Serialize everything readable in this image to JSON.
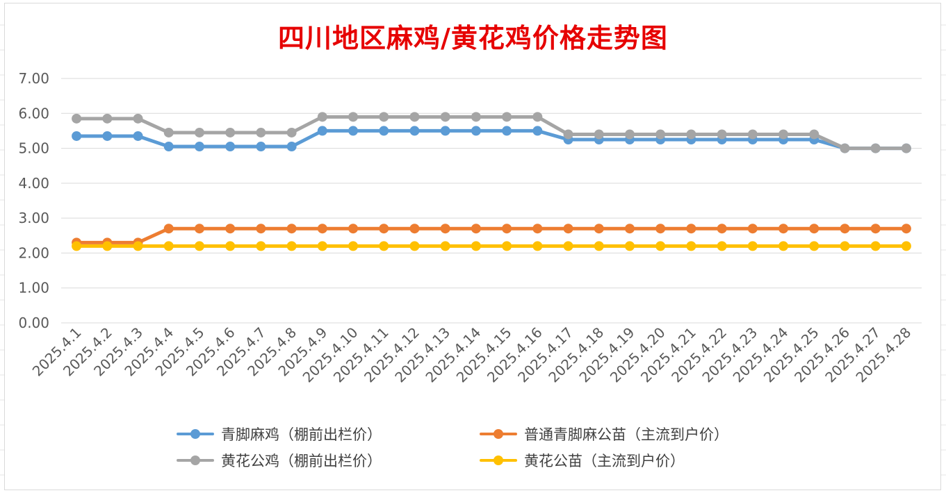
{
  "chart_data": {
    "type": "line",
    "title": "四川地区麻鸡/黄花鸡价格走势图",
    "title_color": "#e60000",
    "categories": [
      "2025.4.1",
      "2025.4.2",
      "2025.4.3",
      "2025.4.4",
      "2025.4.5",
      "2025.4.6",
      "2025.4.7",
      "2025.4.8",
      "2025.4.9",
      "2025.4.10",
      "2025.4.11",
      "2025.4.12",
      "2025.4.13",
      "2025.4.14",
      "2025.4.15",
      "2025.4.16",
      "2025.4.17",
      "2025.4.18",
      "2025.4.19",
      "2025.4.20",
      "2025.4.21",
      "2025.4.22",
      "2025.4.23",
      "2025.4.24",
      "2025.4.25",
      "2025.4.26",
      "2025.4.27",
      "2025.4.28"
    ],
    "ylim": [
      0,
      7
    ],
    "yticks": [
      "0.00",
      "1.00",
      "2.00",
      "3.00",
      "4.00",
      "5.00",
      "6.00",
      "7.00"
    ],
    "grid": true,
    "legend_position": "bottom",
    "series": [
      {
        "name": "青脚麻鸡（棚前出栏价）",
        "color": "#5b9bd5",
        "values": [
          5.35,
          5.35,
          5.35,
          5.05,
          5.05,
          5.05,
          5.05,
          5.05,
          5.5,
          5.5,
          5.5,
          5.5,
          5.5,
          5.5,
          5.5,
          5.5,
          5.25,
          5.25,
          5.25,
          5.25,
          5.25,
          5.25,
          5.25,
          5.25,
          5.25,
          5.0,
          5.0,
          5.0
        ]
      },
      {
        "name": "普通青脚麻公苗（主流到户价）",
        "color": "#ed7d31",
        "values": [
          2.3,
          2.3,
          2.3,
          2.7,
          2.7,
          2.7,
          2.7,
          2.7,
          2.7,
          2.7,
          2.7,
          2.7,
          2.7,
          2.7,
          2.7,
          2.7,
          2.7,
          2.7,
          2.7,
          2.7,
          2.7,
          2.7,
          2.7,
          2.7,
          2.7,
          2.7,
          2.7,
          2.7
        ]
      },
      {
        "name": "黄花公鸡（棚前出栏价）",
        "color": "#a5a5a5",
        "values": [
          5.85,
          5.85,
          5.85,
          5.45,
          5.45,
          5.45,
          5.45,
          5.45,
          5.9,
          5.9,
          5.9,
          5.9,
          5.9,
          5.9,
          5.9,
          5.9,
          5.4,
          5.4,
          5.4,
          5.4,
          5.4,
          5.4,
          5.4,
          5.4,
          5.4,
          5.0,
          5.0,
          5.0
        ]
      },
      {
        "name": "黄花公苗（主流到户价）",
        "color": "#ffc000",
        "values": [
          2.2,
          2.2,
          2.2,
          2.2,
          2.2,
          2.2,
          2.2,
          2.2,
          2.2,
          2.2,
          2.2,
          2.2,
          2.2,
          2.2,
          2.2,
          2.2,
          2.2,
          2.2,
          2.2,
          2.2,
          2.2,
          2.2,
          2.2,
          2.2,
          2.2,
          2.2,
          2.2,
          2.2
        ]
      }
    ]
  }
}
